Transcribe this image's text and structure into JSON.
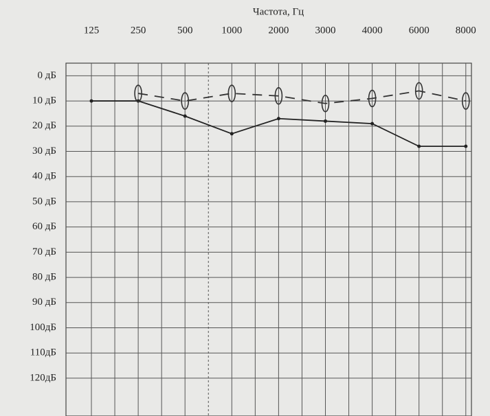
{
  "chart_data": {
    "type": "line",
    "title": "Частота, Гц",
    "categories": [
      "125",
      "250",
      "500",
      "1000",
      "2000",
      "3000",
      "4000",
      "6000",
      "8000"
    ],
    "series": [
      {
        "color": "#222222",
        "values": [
          10,
          10,
          16,
          23,
          17,
          18,
          19,
          28,
          28
        ]
      },
      {
        "color": "#333333",
        "values": [
          null,
          7,
          10,
          7,
          8,
          11,
          9,
          6,
          10
        ]
      }
    ],
    "ylim": [
      -5,
      135
    ],
    "yticks": [
      {
        "value": 0,
        "label": "0 дБ"
      },
      {
        "value": 10,
        "label": "10 дБ"
      },
      {
        "value": 20,
        "label": "20 дБ"
      },
      {
        "value": 30,
        "label": "30 дБ"
      },
      {
        "value": 40,
        "label": "40 дБ"
      },
      {
        "value": 50,
        "label": "50 дБ"
      },
      {
        "value": 60,
        "label": "60 дБ"
      },
      {
        "value": 70,
        "label": "70 дБ"
      },
      {
        "value": 80,
        "label": "80 дБ"
      },
      {
        "value": 90,
        "label": "90 дБ"
      },
      {
        "value": 100,
        "label": "100дБ"
      },
      {
        "value": 110,
        "label": "110дБ"
      },
      {
        "value": 120,
        "label": "120дБ"
      }
    ],
    "grid": true
  }
}
